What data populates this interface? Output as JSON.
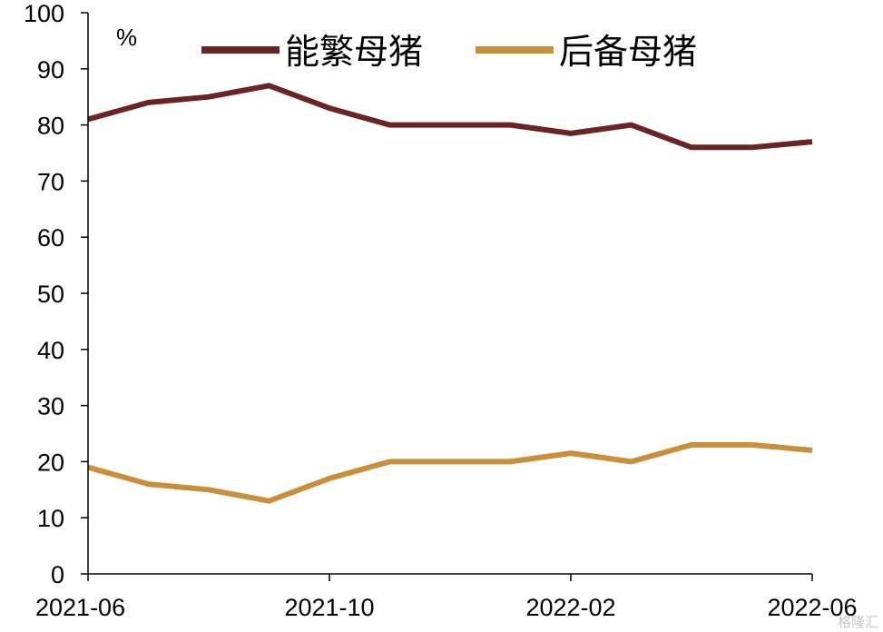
{
  "chart_data": {
    "type": "line",
    "x": [
      "2021-06",
      "2021-07",
      "2021-08",
      "2021-09",
      "2021-10",
      "2021-11",
      "2021-12",
      "2022-01",
      "2022-02",
      "2022-03",
      "2022-04",
      "2022-05",
      "2022-06"
    ],
    "x_tick_labels": [
      "2021-06",
      "2021-10",
      "2022-02",
      "2022-06"
    ],
    "series": [
      {
        "name": "能繁母猪",
        "color": "#6b2426",
        "values": [
          81,
          84,
          85,
          87,
          83,
          80,
          80,
          80,
          78.5,
          80,
          76,
          76,
          77
        ]
      },
      {
        "name": "后备母猪",
        "color": "#c98f3a",
        "values": [
          19,
          16,
          15,
          13,
          17,
          20,
          20,
          20,
          21.5,
          20,
          23,
          23,
          22
        ]
      }
    ],
    "ylim": [
      0,
      100
    ],
    "y_ticks": [
      0,
      10,
      20,
      30,
      40,
      50,
      60,
      70,
      80,
      90,
      100
    ],
    "unit_label": "%",
    "legend_position": "top",
    "grid": false
  },
  "watermark": "格隆汇"
}
